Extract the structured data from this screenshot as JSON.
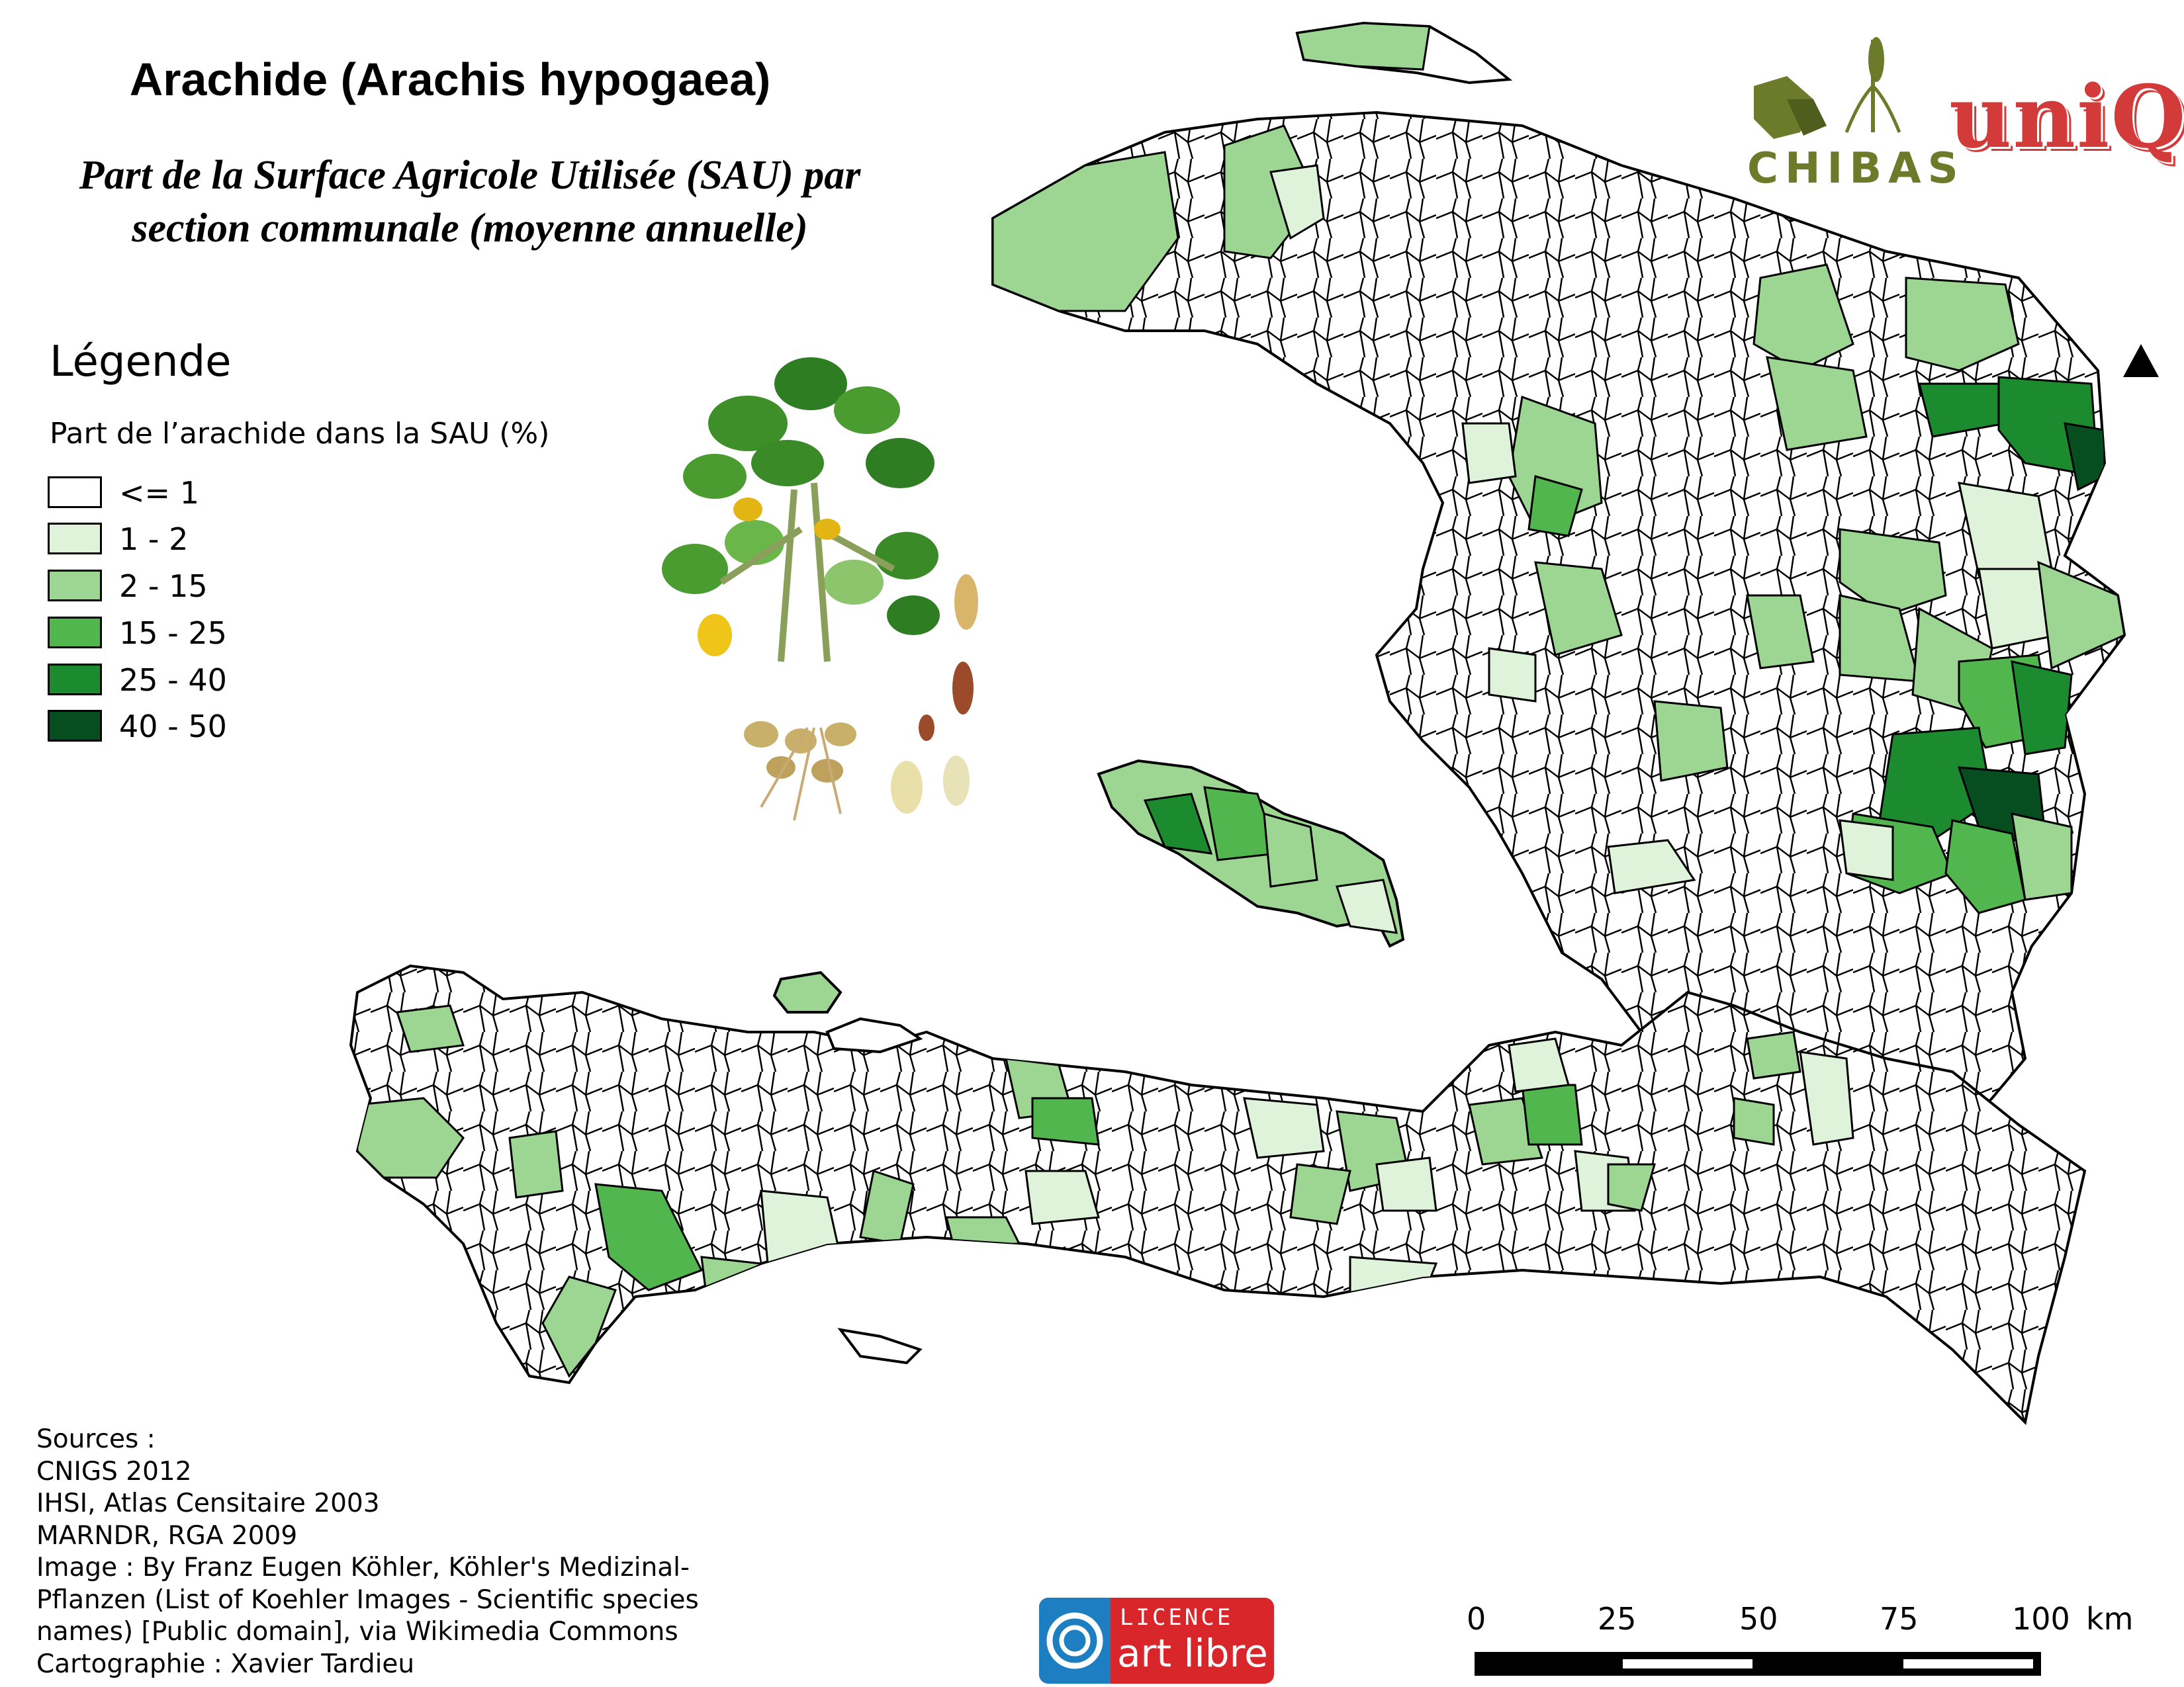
{
  "header": {
    "title": "Arachide (Arachis hypogaea)",
    "subtitle_line1": "Part de la Surface Agricole Utilisée (SAU) par",
    "subtitle_line2": "section communale (moyenne annuelle)"
  },
  "legend": {
    "title": "Légende",
    "subtitle": "Part de l’arachide dans la SAU (%)",
    "classes": [
      {
        "label": "<= 1",
        "color": "#ffffff"
      },
      {
        "label": "1 - 2",
        "color": "#dff2da"
      },
      {
        "label": "2 - 15",
        "color": "#9dd693"
      },
      {
        "label": "15 - 25",
        "color": "#52b64e"
      },
      {
        "label": "25 - 40",
        "color": "#1c8a2e"
      },
      {
        "label": "40 - 50",
        "color": "#064d1f"
      }
    ]
  },
  "sources": {
    "lines": [
      "Sources :",
      "CNIGS 2012",
      "IHSI, Atlas Censitaire 2003",
      "MARNDR, RGA 2009",
      "Image : By Franz Eugen Köhler, Köhler's Medizinal-",
      "Pflanzen (List of Koehler Images - Scientific species",
      "names) [Public domain], via Wikimedia Commons",
      "Cartographie : Xavier Tardieu"
    ]
  },
  "scale_bar": {
    "ticks": [
      "0",
      "25",
      "50",
      "75",
      "100"
    ],
    "unit": "km"
  },
  "logos": {
    "chibas": "CHIBAS",
    "unio": "uniQ",
    "licence_top": "LICENCE",
    "licence_bottom": "art libre"
  },
  "icons": {
    "north_arrow": "north-arrow-icon",
    "plant": "peanut-plant-illustration"
  }
}
